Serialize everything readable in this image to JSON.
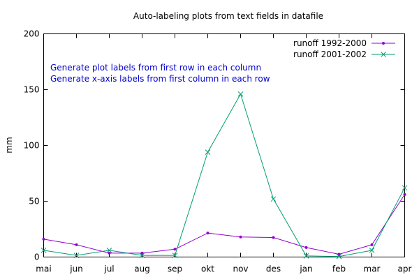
{
  "chart_data": {
    "type": "line",
    "title": "Auto-labeling plots from text fields in datafile",
    "xlabel": "",
    "ylabel": "mm",
    "categories": [
      "mai",
      "jun",
      "jul",
      "aug",
      "sep",
      "okt",
      "nov",
      "des",
      "jan",
      "feb",
      "mar",
      "apr"
    ],
    "ylim": [
      0,
      200
    ],
    "yticks": [
      0,
      50,
      100,
      150,
      200
    ],
    "grid": false,
    "legend_position": "top-right",
    "series": [
      {
        "name": "runoff 1992-2000",
        "color": "#9400d3",
        "marker": "dot",
        "values": [
          16,
          11,
          3.5,
          3.5,
          7,
          21.5,
          18,
          17.5,
          8.5,
          2.5,
          11,
          56
        ]
      },
      {
        "name": "runoff 2001-2002",
        "color": "#009e73",
        "marker": "x",
        "values": [
          6,
          1.5,
          6,
          1.5,
          1.5,
          94,
          146,
          52,
          1,
          0.5,
          6,
          62
        ]
      }
    ],
    "annotations": [
      {
        "text": "Generate plot labels from first row in each column",
        "color": "#0000cc"
      },
      {
        "text": "Generate x-axis labels from first column in each row",
        "color": "#0000cc"
      }
    ]
  }
}
